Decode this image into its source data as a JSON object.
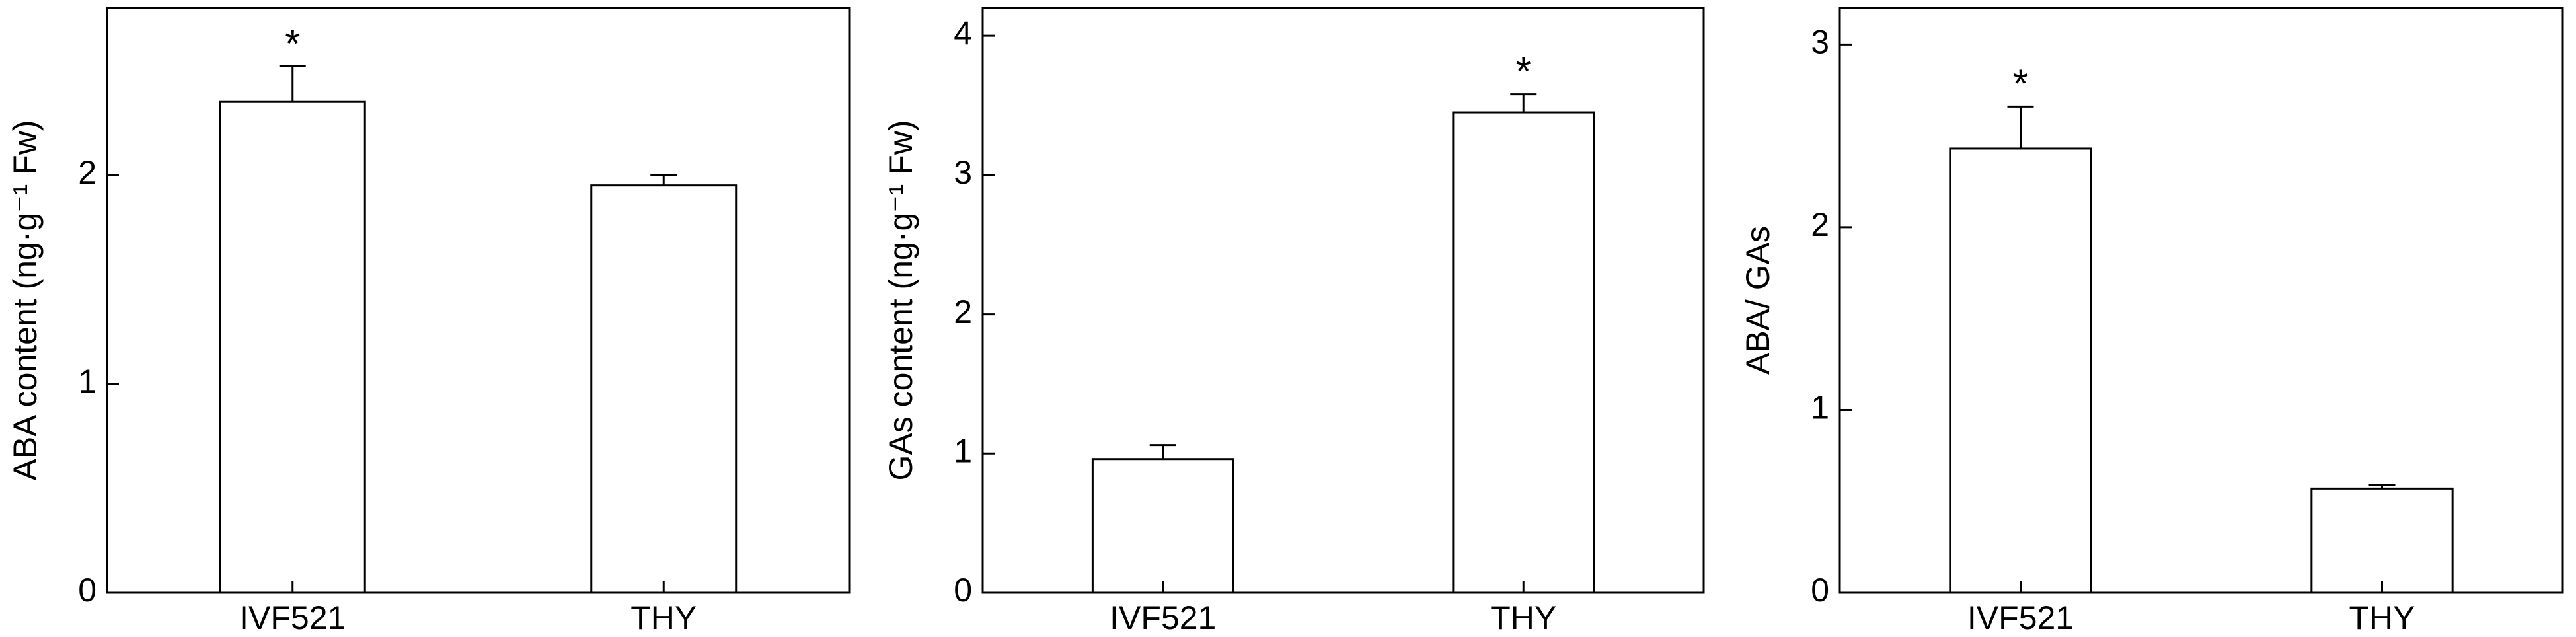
{
  "chart_data": [
    {
      "type": "bar",
      "y_label": "ABA content (ng·g⁻¹ Fw)",
      "categories": [
        "IVF521",
        "THY"
      ],
      "values": [
        2.35,
        1.95
      ],
      "errors": [
        0.17,
        0.05
      ],
      "color": "#ffffff",
      "ylim": [
        0,
        2.8
      ],
      "yticks": [
        0,
        1,
        2
      ],
      "annotations": [
        {
          "x": "IVF521",
          "text": "*"
        }
      ]
    },
    {
      "type": "bar",
      "y_label": "GAs content (ng·g⁻¹ Fw)",
      "categories": [
        "IVF521",
        "THY"
      ],
      "values": [
        0.96,
        3.45
      ],
      "errors": [
        0.1,
        0.13
      ],
      "color": "#ffffff",
      "ylim": [
        0,
        4.2
      ],
      "yticks": [
        0,
        1,
        2,
        3,
        4
      ],
      "annotations": [
        {
          "x": "THY",
          "text": "*"
        }
      ]
    },
    {
      "type": "bar",
      "y_label": "ABA/ GAs",
      "categories": [
        "IVF521",
        "THY"
      ],
      "values": [
        2.43,
        0.57
      ],
      "errors": [
        0.23,
        0.02
      ],
      "color": "#ffffff",
      "ylim": [
        0,
        3.2
      ],
      "yticks": [
        0,
        1,
        2,
        3
      ],
      "annotations": [
        {
          "x": "IVF521",
          "text": "*"
        }
      ]
    }
  ]
}
